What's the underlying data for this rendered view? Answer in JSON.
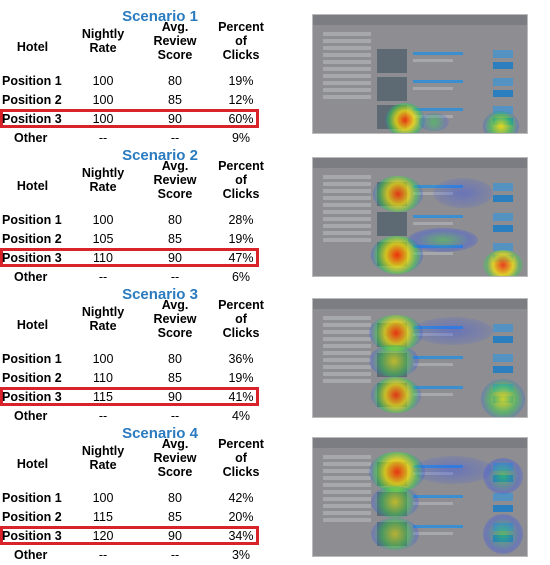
{
  "headers": {
    "hotel": "Hotel",
    "rate_1": "Nightly",
    "rate_2": "Rate",
    "score_1": "Avg.",
    "score_2": "Review",
    "score_3": "Score",
    "pct_1": "Percent",
    "pct_2": "of",
    "pct_3": "Clicks"
  },
  "scenarios": [
    {
      "title": "Scenario 1",
      "rows": [
        {
          "label": "Position 1",
          "rate": "100",
          "score": "80",
          "pct": "19%"
        },
        {
          "label": "Position 2",
          "rate": "100",
          "score": "85",
          "pct": "12%"
        },
        {
          "label": "Position 3",
          "rate": "100",
          "score": "90",
          "pct": "60%"
        },
        {
          "label": "Other",
          "rate": "--",
          "score": "--",
          "pct": "9%"
        }
      ]
    },
    {
      "title": "Scenario 2",
      "rows": [
        {
          "label": "Position 1",
          "rate": "100",
          "score": "80",
          "pct": "28%"
        },
        {
          "label": "Position 2",
          "rate": "105",
          "score": "85",
          "pct": "19%"
        },
        {
          "label": "Position 3",
          "rate": "110",
          "score": "90",
          "pct": "47%"
        },
        {
          "label": "Other",
          "rate": "--",
          "score": "--",
          "pct": "6%"
        }
      ]
    },
    {
      "title": "Scenario 3",
      "rows": [
        {
          "label": "Position 1",
          "rate": "100",
          "score": "80",
          "pct": "36%"
        },
        {
          "label": "Position 2",
          "rate": "110",
          "score": "85",
          "pct": "19%"
        },
        {
          "label": "Position 3",
          "rate": "115",
          "score": "90",
          "pct": "41%"
        },
        {
          "label": "Other",
          "rate": "--",
          "score": "--",
          "pct": "4%"
        }
      ]
    },
    {
      "title": "Scenario 4",
      "rows": [
        {
          "label": "Position 1",
          "rate": "100",
          "score": "80",
          "pct": "42%"
        },
        {
          "label": "Position 2",
          "rate": "115",
          "score": "85",
          "pct": "20%"
        },
        {
          "label": "Position 3",
          "rate": "120",
          "score": "90",
          "pct": "34%"
        },
        {
          "label": "Other",
          "rate": "--",
          "score": "--",
          "pct": "3%"
        }
      ]
    }
  ],
  "colors": {
    "title_blue": "#2a7bbf",
    "highlight_red": "#d8232a",
    "heat_red": "#ff2a00",
    "heat_yellow": "#ffea00",
    "heat_green": "#33d14a",
    "heat_blue": "#2244ff"
  },
  "highlighted_row": "Position 3",
  "icons": [
    "heatmap-screenshot-thumbnail"
  ]
}
